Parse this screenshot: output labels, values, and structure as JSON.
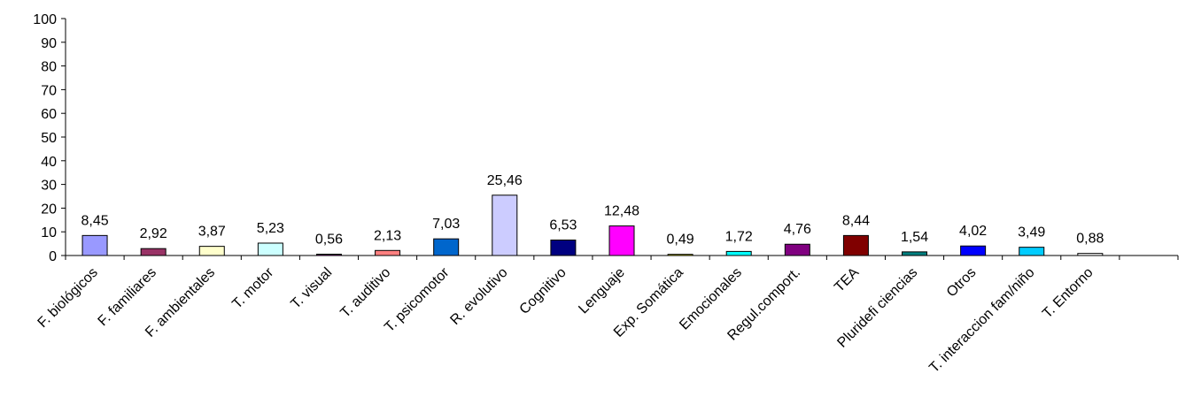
{
  "chart_data": {
    "type": "bar",
    "title": "",
    "xlabel": "",
    "ylabel": "",
    "ylim": [
      0,
      100
    ],
    "y_ticks": [
      "0",
      "10",
      "20",
      "30",
      "40",
      "50",
      "60",
      "70",
      "80",
      "90",
      "100"
    ],
    "grid": false,
    "legend": "none",
    "categories": [
      "F. biológicos",
      "F. familiares",
      "F. ambientales",
      "T. motor",
      "T. visual",
      "T. auditivo",
      "T. psicomotor",
      "R. evolutivo",
      "Cognitivo",
      "Lenguaje",
      "Exp. Somática",
      "Emocionales",
      "Regul.comport.",
      "TEA",
      "Pluridefi ciencias",
      "Otros",
      "T. interaccion fam/niño",
      "T. Entorno"
    ],
    "values": [
      8.45,
      2.92,
      3.87,
      5.23,
      0.56,
      2.13,
      7.03,
      25.46,
      6.53,
      12.48,
      0.49,
      1.72,
      4.76,
      8.44,
      1.54,
      4.02,
      3.49,
      0.88
    ],
    "value_labels": [
      "8,45",
      "2,92",
      "3,87",
      "5,23",
      "0,56",
      "2,13",
      "7,03",
      "25,46",
      "6,53",
      "12,48",
      "0,49",
      "1,72",
      "4,76",
      "8,44",
      "1,54",
      "4,02",
      "3,49",
      "0,88"
    ],
    "colors": [
      "#9999ff",
      "#993366",
      "#ffffcc",
      "#ccffff",
      "#660066",
      "#ff8080",
      "#0066cc",
      "#ccccff",
      "#000080",
      "#ff00ff",
      "#ffff00",
      "#00ffff",
      "#800080",
      "#800000",
      "#008080",
      "#0000ff",
      "#00ccff",
      "#ffffff"
    ]
  }
}
